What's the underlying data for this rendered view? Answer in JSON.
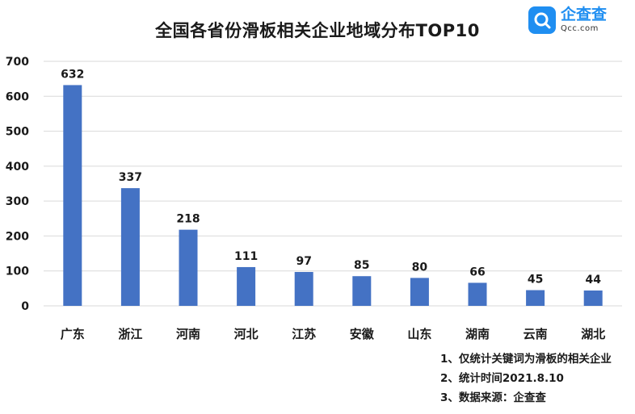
{
  "title": "全国各省份滑板相关企业地域分布TOP10",
  "logo": {
    "name": "企查查",
    "domain": "Qcc.com"
  },
  "notes": [
    "1、仅统计关键词为滑板的相关企业",
    "2、统计时间2021.8.10",
    "3、数据来源：企查查"
  ],
  "chart_data": {
    "type": "bar",
    "title": "全国各省份滑板相关企业地域分布TOP10",
    "categories": [
      "广东",
      "浙江",
      "河南",
      "河北",
      "江苏",
      "安徽",
      "山东",
      "湖南",
      "云南",
      "湖北"
    ],
    "values": [
      632,
      337,
      218,
      111,
      97,
      85,
      80,
      66,
      45,
      44
    ],
    "ylim": [
      0,
      700
    ],
    "yticks": [
      0,
      100,
      200,
      300,
      400,
      500,
      600,
      700
    ],
    "grid": true,
    "bar_color": "#4472c4",
    "xlabel": "",
    "ylabel": ""
  }
}
